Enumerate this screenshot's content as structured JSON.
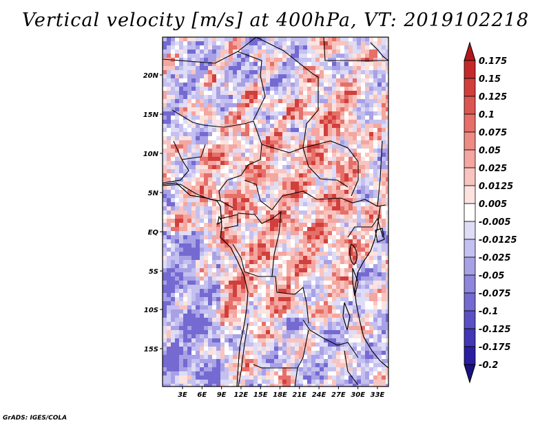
{
  "title": "Vertical velocity [m/s] at 400hPa, VT: 2019102218",
  "credit": "GrADS: IGES/COLA",
  "map": {
    "lat_labels": [
      "20N",
      "15N",
      "10N",
      "5N",
      "EQ",
      "5S",
      "10S",
      "15S"
    ],
    "lon_labels": [
      "3E",
      "6E",
      "9E",
      "12E",
      "15E",
      "18E",
      "21E",
      "24E",
      "27E",
      "30E",
      "33E"
    ]
  },
  "colorbar": {
    "labels": [
      "0.175",
      "0.15",
      "0.125",
      "0.1",
      "0.075",
      "0.05",
      "0.025",
      "0.0125",
      "0.005",
      "-0.005",
      "-0.0125",
      "-0.025",
      "-0.05",
      "-0.075",
      "-0.1",
      "-0.125",
      "-0.175",
      "-0.2"
    ],
    "colors": [
      "#b3171c",
      "#c52a2a",
      "#d13f3c",
      "#dc5651",
      "#e66f69",
      "#ee8b84",
      "#f4a6a0",
      "#f8c4bf",
      "#fce3df",
      "#ffffff",
      "#dedcf6",
      "#c4c0ef",
      "#a8a1e6",
      "#8e85dc",
      "#746ad1",
      "#5b50c4",
      "#4237b4",
      "#2a1fa0",
      "#1a1280"
    ]
  }
}
